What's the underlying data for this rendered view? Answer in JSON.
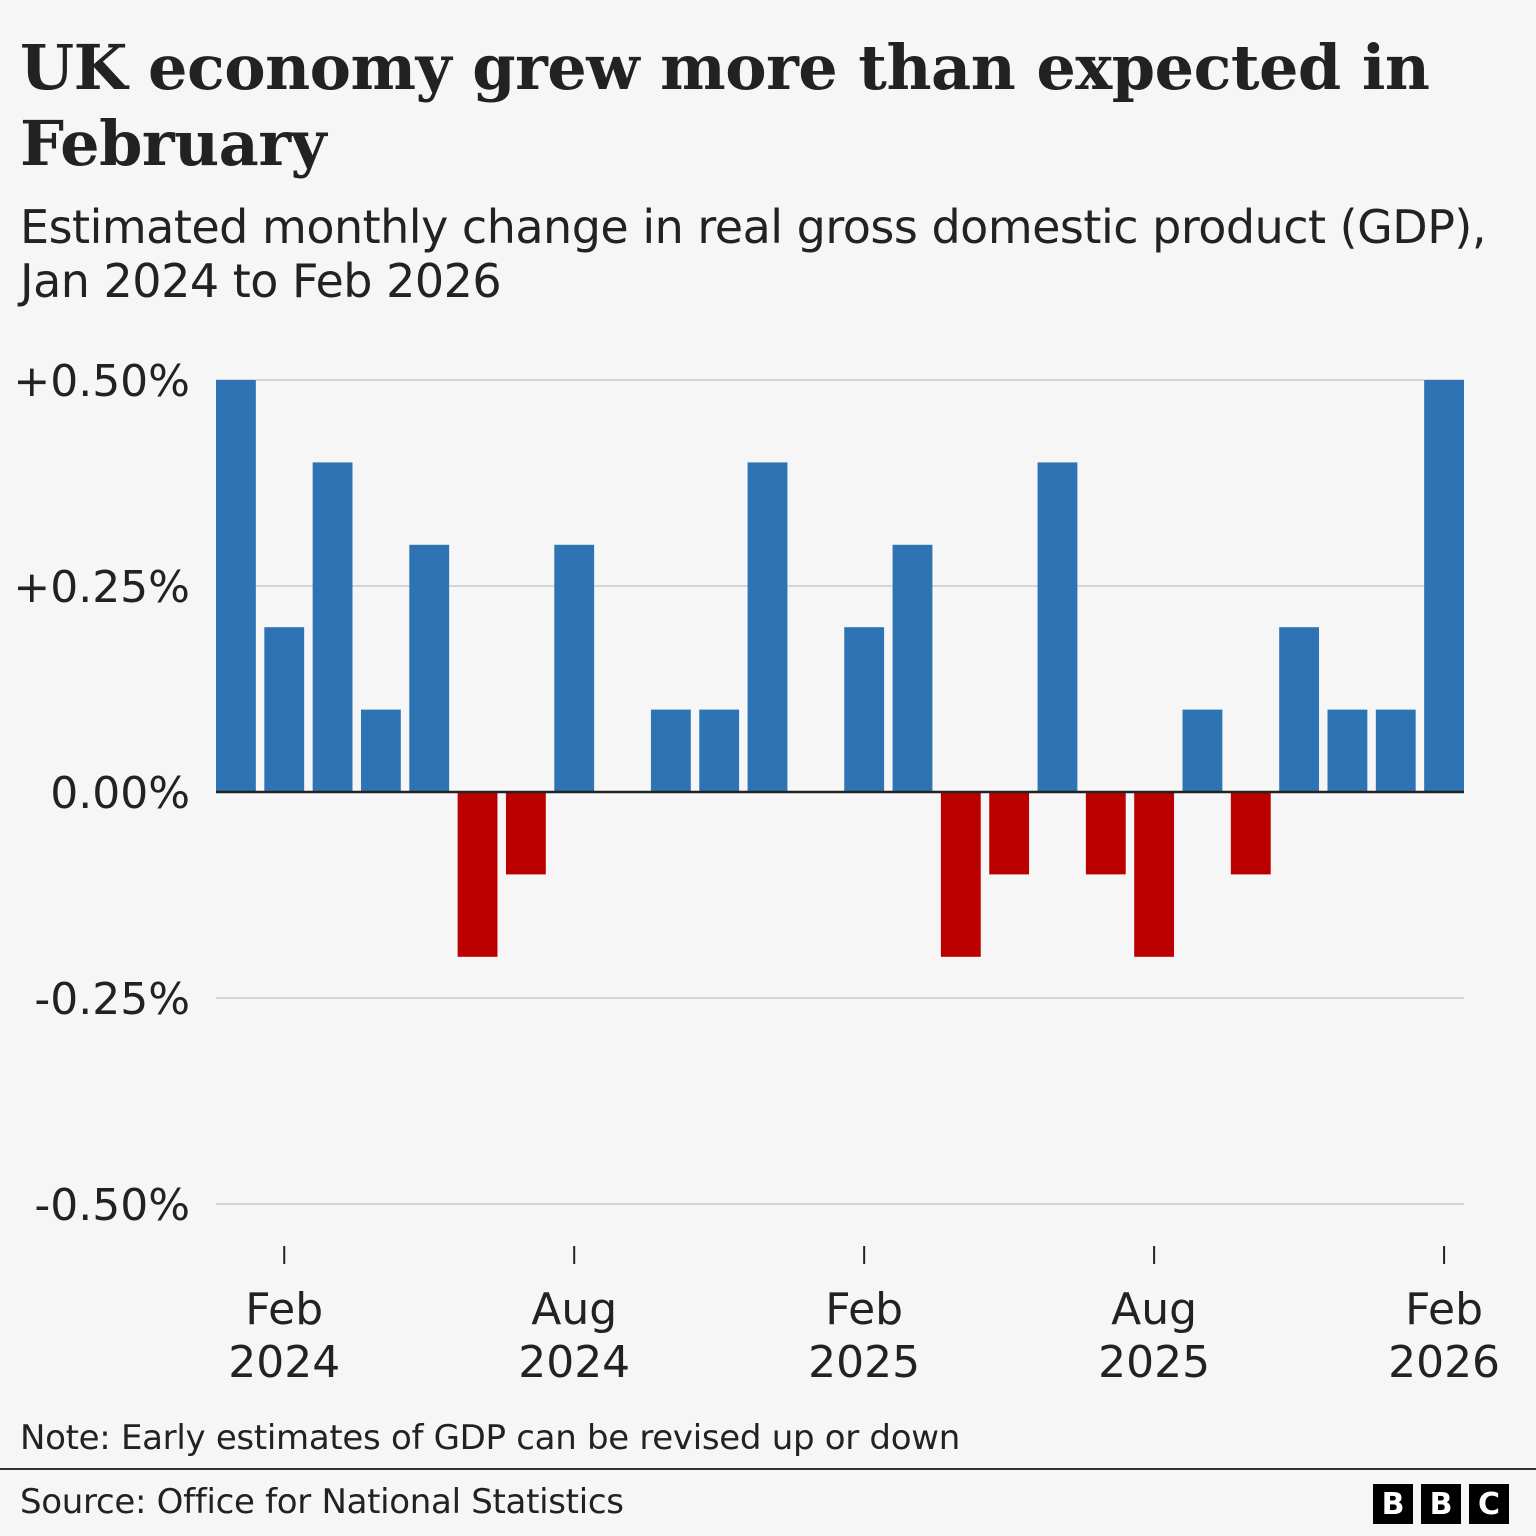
{
  "header": {
    "title": "UK economy grew more than expected in February",
    "subtitle": "Estimated monthly change in real gross domestic product (GDP), Jan 2024 to Feb 2026"
  },
  "footer": {
    "note": "Note: Early estimates of GDP can be revised up or down",
    "source": "Source: Office for National Statistics",
    "logo_letters": [
      "B",
      "B",
      "C"
    ]
  },
  "colors": {
    "positive": "#2e74b5",
    "negative": "#bb0000",
    "gridline": "#d4d4d4",
    "zero_line": "#222222",
    "background": "#f6f6f6"
  },
  "chart_data": {
    "type": "bar",
    "title": "UK economy grew more than expected in February",
    "subtitle": "Estimated monthly change in real gross domestic product (GDP), Jan 2024 to Feb 2026",
    "xlabel": "",
    "ylabel": "",
    "ylim": [
      -0.5,
      0.5
    ],
    "grid": true,
    "legend": "none",
    "categories": [
      "Jan 2024",
      "Feb 2024",
      "Mar 2024",
      "Apr 2024",
      "May 2024",
      "Jun 2024",
      "Jul 2024",
      "Aug 2024",
      "Sep 2024",
      "Oct 2024",
      "Nov 2024",
      "Dec 2024",
      "Jan 2025",
      "Feb 2025",
      "Mar 2025",
      "Apr 2025",
      "May 2025",
      "Jun 2025",
      "Jul 2025",
      "Aug 2025",
      "Sep 2025",
      "Oct 2025",
      "Nov 2025",
      "Dec 2025",
      "Jan 2026",
      "Feb 2026"
    ],
    "values": [
      0.5,
      0.2,
      0.4,
      0.1,
      0.3,
      -0.2,
      -0.1,
      0.3,
      0.0,
      0.1,
      0.1,
      0.4,
      0.0,
      0.2,
      0.3,
      -0.2,
      -0.1,
      0.4,
      -0.1,
      -0.2,
      0.1,
      -0.1,
      0.2,
      0.1,
      0.1,
      0.5
    ],
    "y_ticks": [
      {
        "value": 0.5,
        "label": "+0.50%"
      },
      {
        "value": 0.25,
        "label": "+0.25%"
      },
      {
        "value": 0.0,
        "label": "0.00%"
      },
      {
        "value": -0.25,
        "label": "-0.25%"
      },
      {
        "value": -0.5,
        "label": "-0.50%"
      }
    ],
    "x_ticks": [
      {
        "index": 1,
        "line1": "Feb",
        "line2": "2024"
      },
      {
        "index": 7,
        "line1": "Aug",
        "line2": "2024"
      },
      {
        "index": 13,
        "line1": "Feb",
        "line2": "2025"
      },
      {
        "index": 19,
        "line1": "Aug",
        "line2": "2025"
      },
      {
        "index": 25,
        "line1": "Feb",
        "line2": "2026"
      }
    ]
  }
}
